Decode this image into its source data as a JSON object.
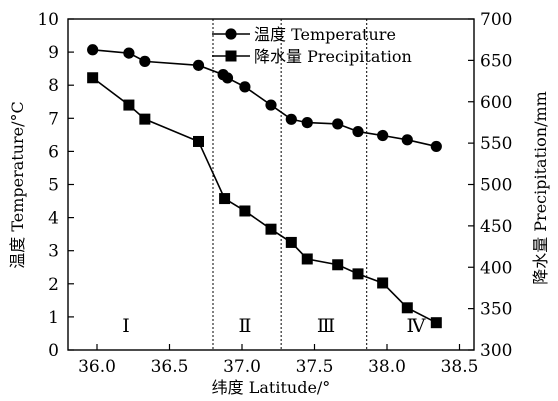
{
  "chart_data": {
    "type": "line",
    "xlabel": "纬度 Latitude/°",
    "ylabel_left": "温度 Temperature/°C",
    "ylabel_right": "降水量 Precipitation/mm",
    "xlim": [
      35.8,
      38.6
    ],
    "ylim_left": [
      0,
      10
    ],
    "ylim_right": [
      300,
      700
    ],
    "x_ticks": [
      "36.0",
      "36.5",
      "37.0",
      "37.5",
      "38.0",
      "38.5"
    ],
    "x_tick_values": [
      36.0,
      36.5,
      37.0,
      37.5,
      38.0,
      38.5
    ],
    "y_left_ticks": [
      "0",
      "1",
      "2",
      "3",
      "4",
      "5",
      "6",
      "7",
      "8",
      "9",
      "10"
    ],
    "y_left_tick_values": [
      0,
      1,
      2,
      3,
      4,
      5,
      6,
      7,
      8,
      9,
      10
    ],
    "y_right_ticks": [
      "300",
      "350",
      "400",
      "450",
      "500",
      "550",
      "600",
      "650",
      "700"
    ],
    "y_right_tick_values": [
      300,
      350,
      400,
      450,
      500,
      550,
      600,
      650,
      700
    ],
    "legend_position": "top-right",
    "grid": false,
    "series": [
      {
        "name": "温度 Temperature",
        "marker": "circle",
        "axis": "left",
        "points": [
          [
            35.97,
            9.07
          ],
          [
            36.22,
            8.97
          ],
          [
            36.33,
            8.72
          ],
          [
            36.7,
            8.6
          ],
          [
            36.87,
            8.32
          ],
          [
            36.9,
            8.22
          ],
          [
            37.02,
            7.95
          ],
          [
            37.2,
            7.4
          ],
          [
            37.34,
            6.97
          ],
          [
            37.45,
            6.87
          ],
          [
            37.66,
            6.83
          ],
          [
            37.8,
            6.6
          ],
          [
            37.97,
            6.48
          ],
          [
            38.14,
            6.35
          ],
          [
            38.34,
            6.15
          ]
        ]
      },
      {
        "name": "降水量 Precipitation",
        "marker": "square",
        "axis": "right",
        "points": [
          [
            35.97,
            629
          ],
          [
            36.22,
            596
          ],
          [
            36.33,
            579
          ],
          [
            36.7,
            552
          ],
          [
            36.88,
            483
          ],
          [
            37.02,
            468
          ],
          [
            37.2,
            446
          ],
          [
            37.34,
            430
          ],
          [
            37.45,
            410
          ],
          [
            37.66,
            403
          ],
          [
            37.8,
            392
          ],
          [
            37.97,
            381
          ],
          [
            38.14,
            351
          ],
          [
            38.34,
            333
          ]
        ]
      }
    ],
    "dividers_x": [
      36.8,
      37.27,
      37.86
    ],
    "zones": [
      {
        "label": "Ⅰ",
        "x": 36.2
      },
      {
        "label": "Ⅱ",
        "x": 37.02
      },
      {
        "label": "Ⅲ",
        "x": 37.58
      },
      {
        "label": "Ⅳ",
        "x": 38.2
      }
    ],
    "zone_label_y": 0.75
  }
}
